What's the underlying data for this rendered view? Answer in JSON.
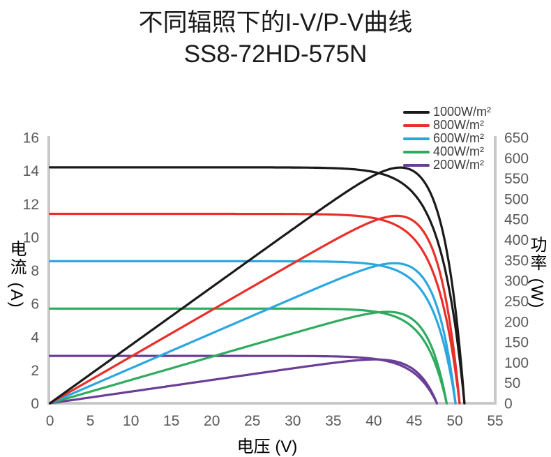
{
  "title": {
    "line1": "不同辐照下的I-V/P-V曲线",
    "line2": "SS8-72HD-575N"
  },
  "chart_data": {
    "type": "line",
    "title": "不同辐照下的I-V/P-V曲线 SS8-72HD-575N",
    "grid": false,
    "x_axis": {
      "label": "电压 (V)",
      "min": 0,
      "max": 55,
      "ticks": [
        0,
        5,
        10,
        15,
        20,
        25,
        30,
        35,
        40,
        45,
        50,
        55
      ]
    },
    "y_axis_left": {
      "label": "电流 (A)",
      "min": 0,
      "max": 16,
      "ticks": [
        0,
        2,
        4,
        6,
        8,
        10,
        12,
        14,
        16
      ]
    },
    "y_axis_right": {
      "label": "功率 (W)",
      "min": 0,
      "max": 650,
      "ticks": [
        0,
        50,
        100,
        150,
        200,
        250,
        300,
        350,
        400,
        450,
        500,
        550,
        600,
        650
      ]
    },
    "legend": {
      "position": "top-right",
      "entries": [
        "1000W/m²",
        "800W/m²",
        "600W/m²",
        "400W/m²",
        "200W/m²"
      ]
    },
    "curves_per_series": [
      "I-V (current vs voltage, left axis)",
      "P-V (power vs voltage, right axis)"
    ],
    "series": [
      {
        "name": "1000W/m²",
        "irradiance_wm2": 1000,
        "color": "#1a1a1a",
        "isc_a": 14.2,
        "voc_v": 51.2,
        "vmp_v": 42.5,
        "pmax_w": 575
      },
      {
        "name": "800W/m²",
        "irradiance_wm2": 800,
        "color": "#e8302a",
        "isc_a": 11.4,
        "voc_v": 50.6,
        "vmp_v": 42.4,
        "pmax_w": 458
      },
      {
        "name": "600W/m²",
        "irradiance_wm2": 600,
        "color": "#2ba7e0",
        "isc_a": 8.55,
        "voc_v": 50.1,
        "vmp_v": 42.0,
        "pmax_w": 342
      },
      {
        "name": "400W/m²",
        "irradiance_wm2": 400,
        "color": "#2fab5f",
        "isc_a": 5.7,
        "voc_v": 49.0,
        "vmp_v": 40.9,
        "pmax_w": 223
      },
      {
        "name": "200W/m²",
        "irradiance_wm2": 200,
        "color": "#6a3e97",
        "isc_a": 2.85,
        "voc_v": 47.8,
        "vmp_v": 41.5,
        "pmax_w": 106
      }
    ]
  },
  "colors": {
    "background": "#ffffff",
    "axis_line": "#c8c8c8",
    "tick_text": "#595959",
    "title_text": "#1a1a1a",
    "axis_label_text": "#000000",
    "legend_text": "#3d3d3d"
  }
}
